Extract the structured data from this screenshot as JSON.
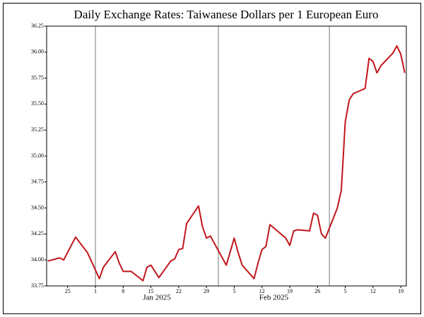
{
  "chart_data": {
    "type": "line",
    "title": "Daily Exchange Rates: Taiwanese Dollars per 1 European Euro",
    "color": "#c0161c",
    "x": [
      -12,
      -9,
      -8,
      -5,
      -2,
      1,
      2,
      5,
      6,
      7,
      8,
      9,
      12,
      13,
      14,
      16,
      19,
      20,
      21,
      22,
      23,
      26,
      27,
      28,
      29,
      33,
      35,
      36,
      37,
      40,
      41,
      42,
      43,
      44,
      48,
      49,
      50,
      51,
      54,
      55,
      56,
      57,
      58,
      61,
      62,
      63,
      64,
      65,
      68,
      69,
      70,
      71,
      72,
      75,
      76,
      77,
      78
    ],
    "values": [
      33.99,
      34.02,
      34.0,
      34.22,
      34.07,
      33.82,
      33.93,
      34.08,
      33.97,
      33.89,
      33.89,
      33.89,
      33.8,
      33.93,
      33.95,
      33.83,
      33.99,
      34.01,
      34.1,
      34.11,
      34.35,
      34.52,
      34.32,
      34.21,
      34.23,
      33.95,
      34.21,
      34.07,
      33.95,
      33.82,
      33.97,
      34.1,
      34.13,
      34.34,
      34.21,
      34.14,
      34.28,
      34.29,
      34.28,
      34.45,
      34.43,
      34.25,
      34.21,
      34.5,
      34.67,
      35.33,
      35.54,
      35.6,
      35.65,
      35.94,
      35.91,
      35.8,
      35.87,
      35.99,
      36.06,
      35.98,
      35.8
    ],
    "xlim": [
      -12.3,
      78.4
    ],
    "xticks": [
      {
        "value": -7,
        "label": "25"
      },
      {
        "value": 0,
        "label": "1"
      },
      {
        "value": 7,
        "label": "8"
      },
      {
        "value": 14,
        "label": "15"
      },
      {
        "value": 21,
        "label": "22"
      },
      {
        "value": 28,
        "label": "29"
      },
      {
        "value": 35,
        "label": "5"
      },
      {
        "value": 42,
        "label": "12"
      },
      {
        "value": 49,
        "label": "19"
      },
      {
        "value": 56,
        "label": "26"
      },
      {
        "value": 63,
        "label": "5"
      },
      {
        "value": 70,
        "label": "12"
      },
      {
        "value": 77,
        "label": "19"
      }
    ],
    "month_lines": [
      0,
      31,
      59
    ],
    "months": [
      {
        "label": "Jan 2025",
        "start": 0,
        "end": 31
      },
      {
        "label": "Feb 2025",
        "start": 31,
        "end": 59
      }
    ],
    "ylim": [
      33.75,
      36.25
    ],
    "yticks": [
      33.75,
      {
        "value": 34,
        "label": "34.00"
      },
      34.25,
      {
        "value": 34.5,
        "label": "34.50"
      },
      34.75,
      {
        "value": 35,
        "label": "35.00"
      },
      35.25,
      {
        "value": 35.5,
        "label": "35.50"
      },
      35.75,
      {
        "value": 36,
        "label": "36.00"
      },
      36.25
    ]
  }
}
